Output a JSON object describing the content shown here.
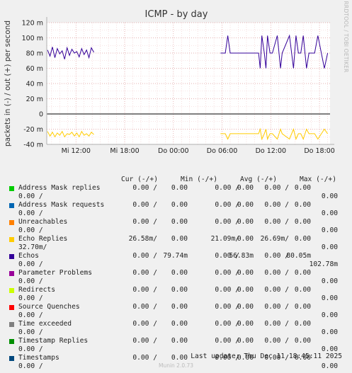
{
  "chart_data": {
    "type": "line",
    "title": "ICMP - by day",
    "ylabel": "packets in (-) / out (+) per second",
    "side_label": "RRDTOOL / TOBI OETIKER",
    "ylim": [
      -40,
      120
    ],
    "yticks": [
      {
        "value": 120,
        "label": "120 m"
      },
      {
        "value": 100,
        "label": "100 m"
      },
      {
        "value": 80,
        "label": "80 m"
      },
      {
        "value": 60,
        "label": "60 m"
      },
      {
        "value": 40,
        "label": "40 m"
      },
      {
        "value": 20,
        "label": "20 m"
      },
      {
        "value": 0,
        "label": "0"
      },
      {
        "value": -20,
        "label": "-20 m"
      },
      {
        "value": -40,
        "label": "-40 m"
      }
    ],
    "xlim_hours": [
      8.4,
      19.3
    ],
    "xticks": [
      {
        "hour": 12,
        "label": "Mi 12:00"
      },
      {
        "hour": 18,
        "label": "Mi 18:00"
      },
      {
        "hour": 24,
        "label": "Do 00:00"
      },
      {
        "hour": 30,
        "label": "Do 06:00"
      },
      {
        "hour": 36,
        "label": "Do 12:00"
      },
      {
        "hour": 42,
        "label": "Do 18:00"
      }
    ],
    "x_range_hours": [
      8.4,
      43.3
    ],
    "series": [
      {
        "name": "Echos",
        "color": "#330099",
        "segments": [
          {
            "x": [
              8.5,
              8.8,
              9.1,
              9.4,
              9.7,
              10.0,
              10.3,
              10.6,
              10.9,
              11.2,
              11.5,
              11.8,
              12.1,
              12.4,
              12.7,
              13.0,
              13.3,
              13.6,
              13.9,
              14.2
            ],
            "y": [
              84,
              76,
              88,
              74,
              86,
              79,
              83,
              72,
              87,
              77,
              85,
              80,
              82,
              75,
              86,
              78,
              84,
              74,
              87,
              81
            ]
          },
          {
            "x": [
              29.8,
              30.4,
              30.7,
              31.0,
              31.6,
              32.4,
              33.5,
              34.5,
              34.7,
              34.9,
              35.2,
              35.4,
              35.6,
              35.9,
              36.2,
              36.8,
              37.2,
              37.4,
              38.3,
              38.8,
              39.1,
              39.4,
              39.7,
              40.0,
              40.4,
              40.7,
              41.4,
              41.8,
              42.6,
              43.0
            ],
            "y": [
              80,
              80,
              103,
              80,
              80,
              80,
              80,
              80,
              60,
              103,
              80,
              60,
              103,
              80,
              80,
              103,
              60,
              80,
              103,
              60,
              103,
              80,
              80,
              103,
              60,
              80,
              80,
              103,
              60,
              80
            ]
          }
        ]
      },
      {
        "name": "Echo Replies",
        "color": "#ffcc00",
        "segments": [
          {
            "x": [
              8.5,
              8.8,
              9.1,
              9.4,
              9.7,
              10.0,
              10.3,
              10.6,
              10.9,
              11.2,
              11.5,
              11.8,
              12.1,
              12.4,
              12.7,
              13.0,
              13.3,
              13.6,
              13.9,
              14.2
            ],
            "y": [
              -23,
              -29,
              -24,
              -30,
              -25,
              -28,
              -23,
              -30,
              -26,
              -27,
              -24,
              -29,
              -25,
              -30,
              -23,
              -28,
              -26,
              -29,
              -24,
              -27
            ]
          },
          {
            "x": [
              29.8,
              30.4,
              30.7,
              31.0,
              31.6,
              32.4,
              33.5,
              34.5,
              34.7,
              34.9,
              35.2,
              35.4,
              35.6,
              35.9,
              36.2,
              36.8,
              37.2,
              37.4,
              38.3,
              38.8,
              39.1,
              39.4,
              39.7,
              40.0,
              40.4,
              40.7,
              41.4,
              41.8,
              42.6,
              43.0
            ],
            "y": [
              -26,
              -26,
              -33,
              -26,
              -26,
              -26,
              -26,
              -26,
              -20,
              -33,
              -26,
              -20,
              -33,
              -26,
              -26,
              -33,
              -20,
              -26,
              -33,
              -20,
              -33,
              -26,
              -26,
              -33,
              -20,
              -26,
              -26,
              -33,
              -20,
              -26
            ]
          }
        ]
      }
    ]
  },
  "legend": {
    "header": {
      "cur": "Cur (-/+)",
      "min": "Min (-/+)",
      "avg": "Avg (-/+)",
      "max": "Max (-/+)"
    },
    "rows": [
      {
        "name": "Address Mask replies",
        "color": "#00cc00",
        "cur_in": "0.00 /",
        "cur_out": "0.00",
        "min_in": "0.00 /",
        "min_out": "0.00",
        "avg_in": "0.00 /",
        "avg_out": "0.00",
        "max_in": "0.00 /",
        "max_out": "0.00"
      },
      {
        "name": "Address Mask requests",
        "color": "#0066b3",
        "cur_in": "0.00 /",
        "cur_out": "0.00",
        "min_in": "0.00 /",
        "min_out": "0.00",
        "avg_in": "0.00 /",
        "avg_out": "0.00",
        "max_in": "0.00 /",
        "max_out": "0.00"
      },
      {
        "name": "Unreachables",
        "color": "#ff8000",
        "cur_in": "0.00 /",
        "cur_out": "0.00",
        "min_in": "0.00 /",
        "min_out": "0.00",
        "avg_in": "0.00 /",
        "avg_out": "0.00",
        "max_in": "0.00 /",
        "max_out": "0.00"
      },
      {
        "name": "Echo Replies",
        "color": "#ffcc00",
        "cur_in": "26.58m/",
        "cur_out": "0.00",
        "min_in": "21.09m/",
        "min_out": "0.00",
        "avg_in": "26.69m/",
        "avg_out": "0.00",
        "max_in": "32.70m/",
        "max_out": "0.00"
      },
      {
        "name": "Echos",
        "color": "#330099",
        "cur_in": "0.00 /",
        "cur_out": "79.74m",
        "min_in": "0.00 /",
        "min_out": "56.83m",
        "avg_in": "0.00 /",
        "avg_out": "80.05m",
        "max_in": "0.00 /",
        "max_out": "102.78m"
      },
      {
        "name": "Parameter Problems",
        "color": "#990099",
        "cur_in": "0.00 /",
        "cur_out": "0.00",
        "min_in": "0.00 /",
        "min_out": "0.00",
        "avg_in": "0.00 /",
        "avg_out": "0.00",
        "max_in": "0.00 /",
        "max_out": "0.00"
      },
      {
        "name": "Redirects",
        "color": "#ccff00",
        "cur_in": "0.00 /",
        "cur_out": "0.00",
        "min_in": "0.00 /",
        "min_out": "0.00",
        "avg_in": "0.00 /",
        "avg_out": "0.00",
        "max_in": "0.00 /",
        "max_out": "0.00"
      },
      {
        "name": "Source Quenches",
        "color": "#ff0000",
        "cur_in": "0.00 /",
        "cur_out": "0.00",
        "min_in": "0.00 /",
        "min_out": "0.00",
        "avg_in": "0.00 /",
        "avg_out": "0.00",
        "max_in": "0.00 /",
        "max_out": "0.00"
      },
      {
        "name": "Time exceeded",
        "color": "#808080",
        "cur_in": "0.00 /",
        "cur_out": "0.00",
        "min_in": "0.00 /",
        "min_out": "0.00",
        "avg_in": "0.00 /",
        "avg_out": "0.00",
        "max_in": "0.00 /",
        "max_out": "0.00"
      },
      {
        "name": "Timestamp Replies",
        "color": "#008f00",
        "cur_in": "0.00 /",
        "cur_out": "0.00",
        "min_in": "0.00 /",
        "min_out": "0.00",
        "avg_in": "0.00 /",
        "avg_out": "0.00",
        "max_in": "0.00 /",
        "max_out": "0.00"
      },
      {
        "name": "Timestamps",
        "color": "#00487d",
        "cur_in": "0.00 /",
        "cur_out": "0.00",
        "min_in": "0.00 /",
        "min_out": "0.00",
        "avg_in": "0.00 /",
        "avg_out": "0.00",
        "max_in": "0.00 /",
        "max_out": "0.00"
      }
    ]
  },
  "footer": {
    "last_update": "Last update: Thu Dec 11 18:45:11 2025",
    "munin_version": "Munin 2.0.73"
  }
}
